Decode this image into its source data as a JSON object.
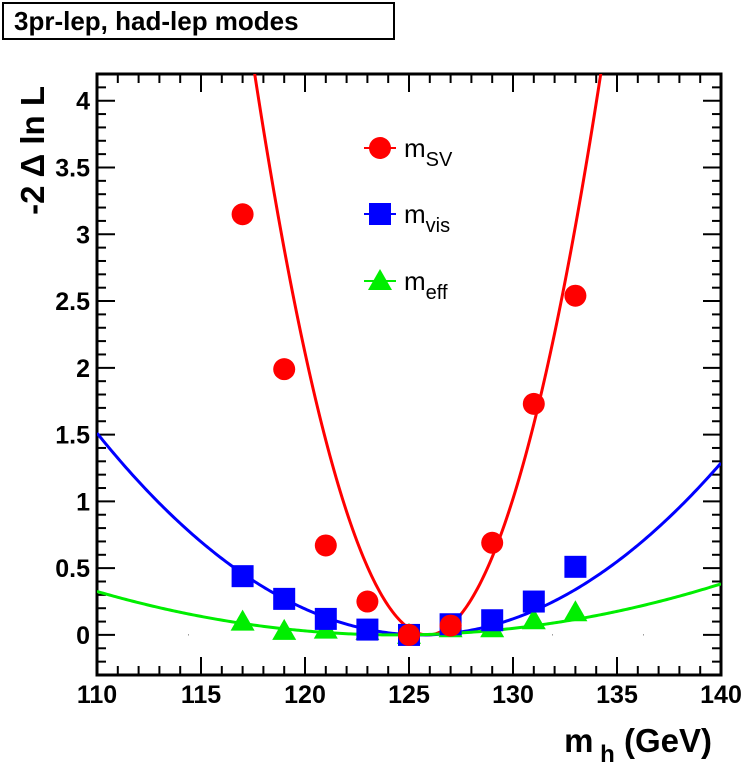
{
  "title": "3pr-lep, had-lep modes",
  "chart_data": {
    "type": "scatter",
    "xlabel": "m",
    "xlabel_sub": "h",
    "xlabel_unit": "(GeV)",
    "ylabel": "-2 Δ ln L",
    "xlim": [
      110,
      140
    ],
    "ylim": [
      -0.3,
      4.2
    ],
    "xticks": [
      110,
      115,
      120,
      125,
      130,
      135,
      140
    ],
    "xtick_labels": [
      "110",
      "115",
      "120",
      "125",
      "130",
      "135",
      "140"
    ],
    "yticks": [
      0,
      0.5,
      1,
      1.5,
      2,
      2.5,
      3,
      3.5,
      4
    ],
    "ytick_labels": [
      "0",
      "0.5",
      "1",
      "1.5",
      "2",
      "2.5",
      "3",
      "3.5",
      "4"
    ],
    "legend": {
      "position": "top-center"
    },
    "series": [
      {
        "name": "m",
        "sub": "SV",
        "color": "#ff0000",
        "marker": "circle",
        "x": [
          117,
          119,
          121,
          123,
          125,
          127,
          129,
          131,
          133
        ],
        "y": [
          3.15,
          1.99,
          0.67,
          0.25,
          0.0,
          0.07,
          0.69,
          1.73,
          2.54
        ],
        "fit": {
          "center": 125.9,
          "curvature": 0.0607
        }
      },
      {
        "name": "m",
        "sub": "vis",
        "color": "#0000ff",
        "marker": "square",
        "x": [
          117,
          119,
          121,
          123,
          125,
          127,
          129,
          131,
          133
        ],
        "y": [
          0.44,
          0.27,
          0.12,
          0.04,
          0.0,
          0.08,
          0.11,
          0.25,
          0.51
        ],
        "fit": {
          "center": 125.6,
          "curvature": 0.00621
        }
      },
      {
        "name": "m",
        "sub": "eff",
        "color": "#00ee00",
        "marker": "triangle",
        "x": [
          117,
          119,
          121,
          123,
          125,
          127,
          129,
          131,
          133
        ],
        "y": [
          0.1,
          0.03,
          0.04,
          0.03,
          0.0,
          0.05,
          0.05,
          0.11,
          0.17
        ],
        "fit": {
          "center": 124.4,
          "curvature": 0.00157
        }
      }
    ]
  }
}
